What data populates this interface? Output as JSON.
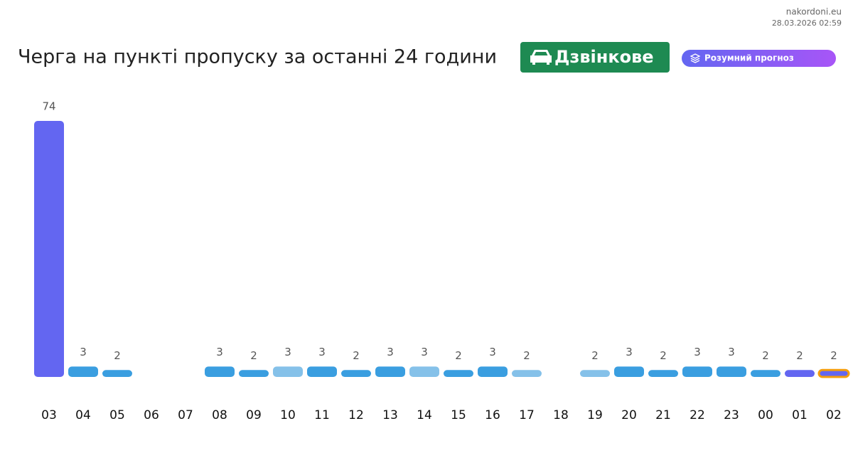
{
  "site": "nakordoni.eu",
  "timestamp": "28.03.2026 02:59",
  "chart_data": {
    "type": "bar",
    "title": "Черга на пункті пропуску за останні 24 години",
    "checkpoint": "Дзвінкове",
    "forecast_label": "Розумний прогноз",
    "categories": [
      "03",
      "04",
      "05",
      "06",
      "07",
      "08",
      "09",
      "10",
      "11",
      "12",
      "13",
      "14",
      "15",
      "16",
      "17",
      "18",
      "19",
      "20",
      "21",
      "22",
      "23",
      "00",
      "01",
      "02"
    ],
    "values": [
      74,
      3,
      2,
      null,
      null,
      3,
      2,
      3,
      3,
      2,
      3,
      3,
      2,
      3,
      2,
      null,
      2,
      3,
      2,
      3,
      3,
      2,
      2,
      2
    ],
    "colors": [
      "#6366f1",
      "#3a9ee0",
      "#3a9ee0",
      null,
      null,
      "#3a9ee0",
      "#3a9ee0",
      "#85c1e9",
      "#3a9ee0",
      "#3a9ee0",
      "#3a9ee0",
      "#85c1e9",
      "#3a9ee0",
      "#3a9ee0",
      "#85c1e9",
      null,
      "#85c1e9",
      "#3a9ee0",
      "#3a9ee0",
      "#3a9ee0",
      "#3a9ee0",
      "#3a9ee0",
      "#6366f1",
      "#6366f1"
    ],
    "highlight_color": "#f59e0b",
    "ylim": [
      0,
      74
    ]
  }
}
